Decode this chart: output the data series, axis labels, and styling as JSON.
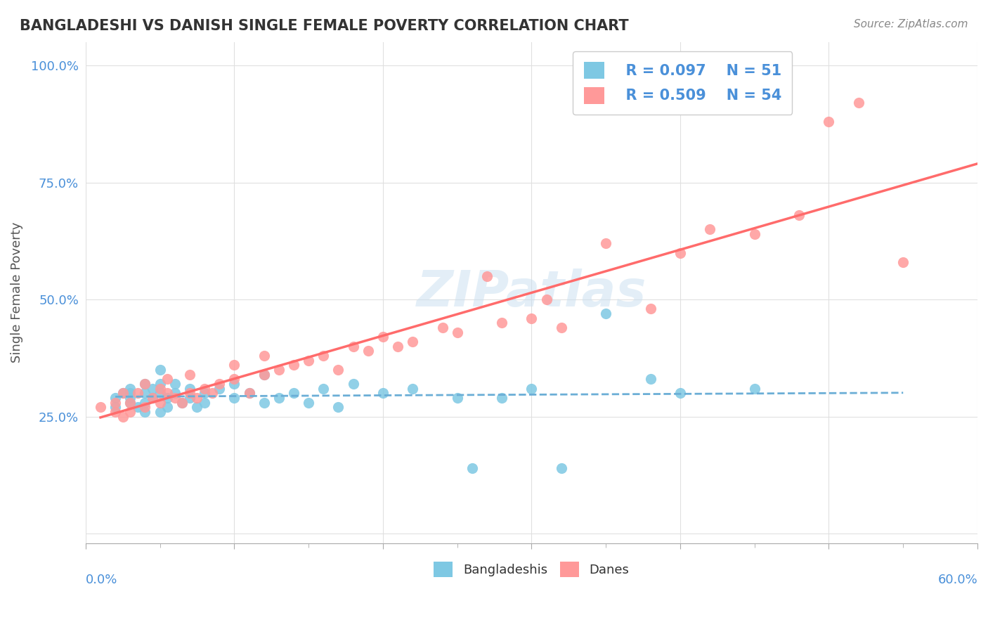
{
  "title": "BANGLADESHI VS DANISH SINGLE FEMALE POVERTY CORRELATION CHART",
  "source_text": "Source: ZipAtlas.com",
  "ylabel": "Single Female Poverty",
  "yticks": [
    0.0,
    0.25,
    0.5,
    0.75,
    1.0
  ],
  "ytick_labels": [
    "",
    "25.0%",
    "50.0%",
    "75.0%",
    "100.0%"
  ],
  "xlim": [
    0.0,
    0.6
  ],
  "ylim": [
    -0.02,
    1.05
  ],
  "watermark": "ZIPatlas",
  "legend_r1": "R = 0.097",
  "legend_n1": "N = 51",
  "legend_r2": "R = 0.509",
  "legend_n2": "N = 54",
  "color_blue": "#7EC8E3",
  "color_pink": "#FF9999",
  "bg_color": "#FFFFFF",
  "grid_color": "#E0E0E0",
  "bangladeshi_x": [
    0.02,
    0.02,
    0.025,
    0.03,
    0.03,
    0.03,
    0.03,
    0.035,
    0.04,
    0.04,
    0.04,
    0.04,
    0.045,
    0.045,
    0.05,
    0.05,
    0.05,
    0.05,
    0.055,
    0.055,
    0.06,
    0.06,
    0.065,
    0.07,
    0.07,
    0.075,
    0.08,
    0.08,
    0.09,
    0.1,
    0.1,
    0.11,
    0.12,
    0.12,
    0.13,
    0.14,
    0.15,
    0.16,
    0.17,
    0.18,
    0.2,
    0.22,
    0.25,
    0.26,
    0.28,
    0.3,
    0.32,
    0.35,
    0.38,
    0.4,
    0.45
  ],
  "bangladeshi_y": [
    0.27,
    0.29,
    0.3,
    0.28,
    0.29,
    0.3,
    0.31,
    0.27,
    0.28,
    0.3,
    0.32,
    0.26,
    0.29,
    0.31,
    0.26,
    0.3,
    0.32,
    0.35,
    0.27,
    0.29,
    0.3,
    0.32,
    0.28,
    0.29,
    0.31,
    0.27,
    0.28,
    0.3,
    0.31,
    0.29,
    0.32,
    0.3,
    0.28,
    0.34,
    0.29,
    0.3,
    0.28,
    0.31,
    0.27,
    0.32,
    0.3,
    0.31,
    0.29,
    0.14,
    0.29,
    0.31,
    0.14,
    0.47,
    0.33,
    0.3,
    0.31
  ],
  "danish_x": [
    0.01,
    0.02,
    0.02,
    0.025,
    0.025,
    0.03,
    0.03,
    0.035,
    0.04,
    0.04,
    0.045,
    0.05,
    0.05,
    0.055,
    0.055,
    0.06,
    0.065,
    0.07,
    0.07,
    0.075,
    0.08,
    0.085,
    0.09,
    0.1,
    0.1,
    0.11,
    0.12,
    0.12,
    0.13,
    0.14,
    0.15,
    0.16,
    0.17,
    0.18,
    0.19,
    0.2,
    0.21,
    0.22,
    0.24,
    0.25,
    0.27,
    0.28,
    0.3,
    0.31,
    0.32,
    0.35,
    0.38,
    0.4,
    0.42,
    0.45,
    0.48,
    0.5,
    0.52,
    0.55
  ],
  "danish_y": [
    0.27,
    0.26,
    0.28,
    0.25,
    0.3,
    0.26,
    0.28,
    0.3,
    0.27,
    0.32,
    0.29,
    0.28,
    0.31,
    0.3,
    0.33,
    0.29,
    0.28,
    0.3,
    0.34,
    0.29,
    0.31,
    0.3,
    0.32,
    0.33,
    0.36,
    0.3,
    0.34,
    0.38,
    0.35,
    0.36,
    0.37,
    0.38,
    0.35,
    0.4,
    0.39,
    0.42,
    0.4,
    0.41,
    0.44,
    0.43,
    0.55,
    0.45,
    0.46,
    0.5,
    0.44,
    0.62,
    0.48,
    0.6,
    0.65,
    0.64,
    0.68,
    0.88,
    0.92,
    0.58
  ]
}
